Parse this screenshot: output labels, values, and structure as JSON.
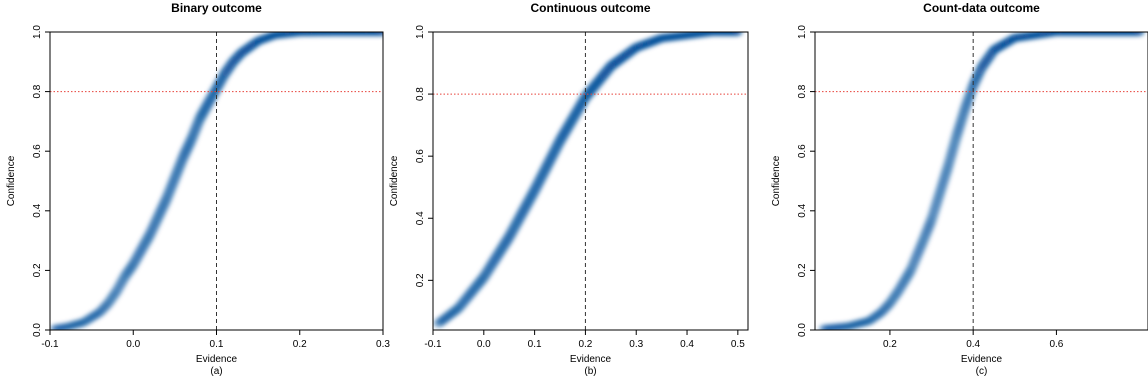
{
  "chart_data": [
    {
      "type": "scatter",
      "title": "Binary outcome",
      "xlabel": "Evidence",
      "ylabel": "Confidence",
      "caption": "(a)",
      "xlim": [
        -0.1,
        0.3
      ],
      "ylim": [
        0.0,
        1.0
      ],
      "xticks": [
        "-0.1",
        "0.0",
        "0.1",
        "0.2",
        "0.3"
      ],
      "yticks": [
        "0.0",
        "0.2",
        "0.4",
        "0.6",
        "0.8",
        "1.0"
      ],
      "reference_lines": {
        "vertical_x": 0.1,
        "horizontal_y": 0.8
      },
      "points": [
        [
          -0.095,
          0.004
        ],
        [
          -0.08,
          0.01
        ],
        [
          -0.06,
          0.025
        ],
        [
          -0.04,
          0.06
        ],
        [
          -0.03,
          0.09
        ],
        [
          -0.02,
          0.13
        ],
        [
          -0.01,
          0.18
        ],
        [
          0.0,
          0.22
        ],
        [
          0.01,
          0.27
        ],
        [
          0.02,
          0.32
        ],
        [
          0.03,
          0.38
        ],
        [
          0.04,
          0.44
        ],
        [
          0.05,
          0.51
        ],
        [
          0.06,
          0.58
        ],
        [
          0.07,
          0.64
        ],
        [
          0.08,
          0.71
        ],
        [
          0.09,
          0.76
        ],
        [
          0.1,
          0.81
        ],
        [
          0.11,
          0.86
        ],
        [
          0.12,
          0.9
        ],
        [
          0.13,
          0.93
        ],
        [
          0.15,
          0.97
        ],
        [
          0.17,
          0.99
        ],
        [
          0.2,
          0.999
        ],
        [
          0.25,
          1.0
        ],
        [
          0.3,
          1.0
        ]
      ]
    },
    {
      "type": "scatter",
      "title": "Continuous outcome",
      "xlabel": "Evidence",
      "ylabel": "Confidence",
      "caption": "(b)",
      "xlim": [
        -0.1,
        0.52
      ],
      "ylim": [
        0.04,
        1.0
      ],
      "xticks": [
        "-0.1",
        "0.0",
        "0.1",
        "0.2",
        "0.3",
        "0.4",
        "0.5"
      ],
      "yticks": [
        "0.2",
        "0.4",
        "0.6",
        "0.8",
        "1.0"
      ],
      "reference_lines": {
        "vertical_x": 0.2,
        "horizontal_y": 0.8
      },
      "points": [
        [
          -0.09,
          0.06
        ],
        [
          -0.05,
          0.11
        ],
        [
          0.0,
          0.21
        ],
        [
          0.05,
          0.34
        ],
        [
          0.1,
          0.49
        ],
        [
          0.15,
          0.65
        ],
        [
          0.2,
          0.79
        ],
        [
          0.25,
          0.89
        ],
        [
          0.3,
          0.95
        ],
        [
          0.35,
          0.98
        ],
        [
          0.4,
          0.99
        ],
        [
          0.45,
          1.0
        ],
        [
          0.5,
          1.0
        ]
      ]
    },
    {
      "type": "scatter",
      "title": "Count-data outcome",
      "xlabel": "Evidence",
      "ylabel": "Confidence",
      "caption": "(c)",
      "xlim": [
        0.02,
        0.82
      ],
      "ylim": [
        0.0,
        1.0
      ],
      "xticks": [
        "0.2",
        "0.4",
        "0.6"
      ],
      "yticks": [
        "0.0",
        "0.2",
        "0.4",
        "0.6",
        "0.8",
        "1.0"
      ],
      "reference_lines": {
        "vertical_x": 0.4,
        "horizontal_y": 0.8
      },
      "points": [
        [
          0.04,
          0.004
        ],
        [
          0.1,
          0.012
        ],
        [
          0.15,
          0.03
        ],
        [
          0.18,
          0.06
        ],
        [
          0.2,
          0.09
        ],
        [
          0.22,
          0.13
        ],
        [
          0.25,
          0.2
        ],
        [
          0.28,
          0.3
        ],
        [
          0.3,
          0.37
        ],
        [
          0.32,
          0.46
        ],
        [
          0.34,
          0.55
        ],
        [
          0.36,
          0.65
        ],
        [
          0.38,
          0.74
        ],
        [
          0.4,
          0.82
        ],
        [
          0.42,
          0.88
        ],
        [
          0.45,
          0.94
        ],
        [
          0.5,
          0.98
        ],
        [
          0.55,
          0.99
        ],
        [
          0.6,
          1.0
        ],
        [
          0.7,
          1.0
        ],
        [
          0.8,
          1.0
        ]
      ]
    }
  ]
}
